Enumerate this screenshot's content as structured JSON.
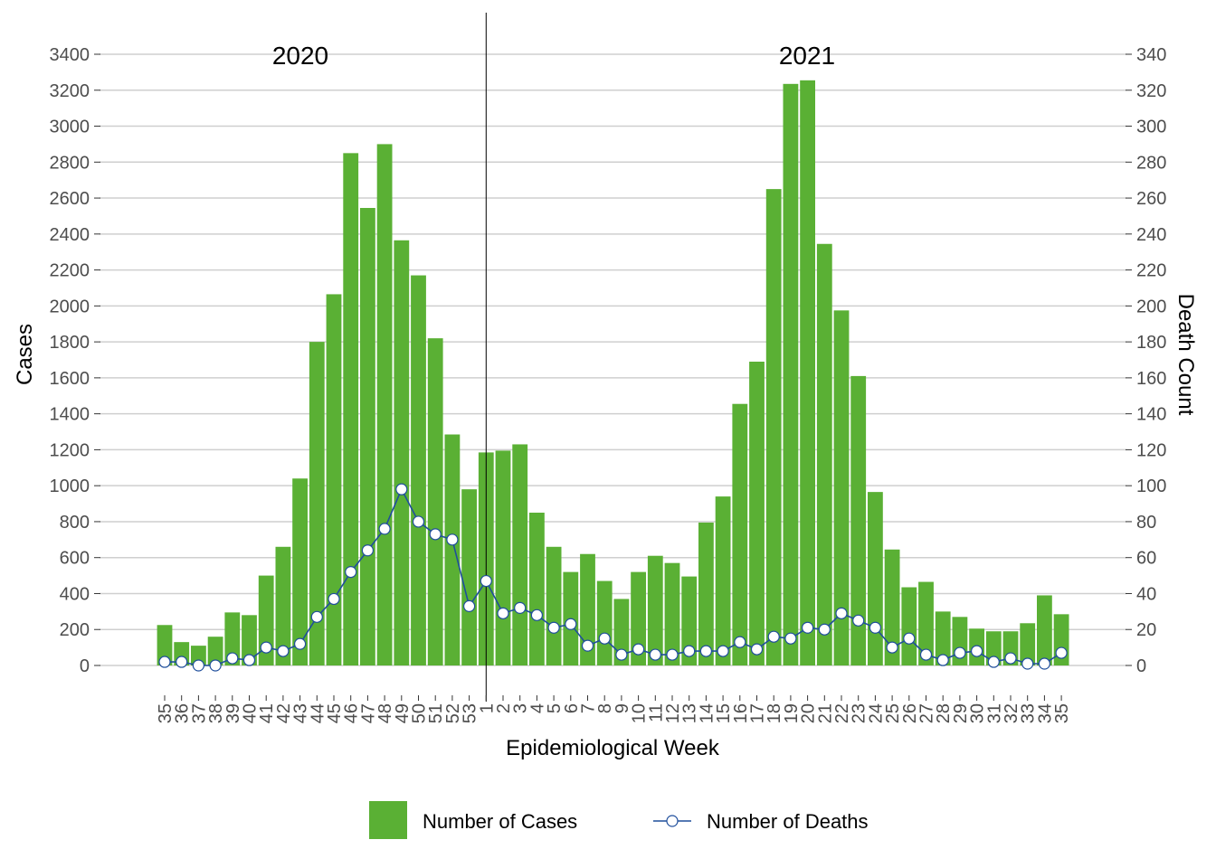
{
  "chart_data": {
    "type": "bar",
    "xlabel": "Epidemiological Week",
    "ylabel": "Cases",
    "ylabel_right": "Death Count",
    "ylim": [
      0,
      3400
    ],
    "ylim_right": [
      0,
      340
    ],
    "yticks": [
      0,
      200,
      400,
      600,
      800,
      1000,
      1200,
      1400,
      1600,
      1800,
      2000,
      2200,
      2400,
      2600,
      2800,
      3000,
      3200,
      3400
    ],
    "yticks_right": [
      0,
      20,
      40,
      60,
      80,
      100,
      120,
      140,
      160,
      180,
      200,
      220,
      240,
      260,
      280,
      300,
      320,
      340
    ],
    "grid": true,
    "legend_position": "bottom",
    "year_labels": [
      "2020",
      "2021"
    ],
    "year_divider_at_week": "1",
    "categories": [
      "35",
      "36",
      "37",
      "38",
      "39",
      "40",
      "41",
      "42",
      "43",
      "44",
      "45",
      "46",
      "47",
      "48",
      "49",
      "50",
      "51",
      "52",
      "53",
      "1",
      "2",
      "3",
      "4",
      "5",
      "6",
      "7",
      "8",
      "9",
      "10",
      "11",
      "12",
      "13",
      "14",
      "15",
      "16",
      "17",
      "18",
      "19",
      "20",
      "21",
      "22",
      "23",
      "24",
      "25",
      "26",
      "27",
      "28",
      "29",
      "30",
      "31",
      "32",
      "33",
      "34",
      "35"
    ],
    "series": [
      {
        "name": "Number of Cases",
        "type": "bar",
        "axis": "left",
        "color": "#5ab034",
        "values": [
          225,
          130,
          110,
          160,
          295,
          280,
          500,
          660,
          1040,
          1800,
          2065,
          2850,
          2545,
          2900,
          2365,
          2170,
          1820,
          1285,
          980,
          1185,
          1195,
          1230,
          850,
          660,
          520,
          620,
          470,
          370,
          520,
          610,
          570,
          495,
          795,
          940,
          1455,
          1690,
          2650,
          3235,
          3255,
          2345,
          1975,
          1610,
          965,
          645,
          435,
          465,
          300,
          270,
          205,
          190,
          190,
          235,
          390,
          285
        ]
      },
      {
        "name": "Number of Deaths",
        "type": "line",
        "axis": "right",
        "color": "#1f4e9c",
        "values": [
          2,
          2,
          0,
          0,
          4,
          3,
          10,
          8,
          12,
          27,
          37,
          52,
          64,
          76,
          98,
          80,
          73,
          70,
          33,
          47,
          29,
          32,
          28,
          21,
          23,
          11,
          15,
          6,
          9,
          6,
          6,
          8,
          8,
          8,
          13,
          9,
          16,
          15,
          21,
          20,
          29,
          25,
          21,
          10,
          15,
          6,
          3,
          7,
          8,
          2,
          4,
          1,
          1,
          7
        ]
      }
    ]
  }
}
